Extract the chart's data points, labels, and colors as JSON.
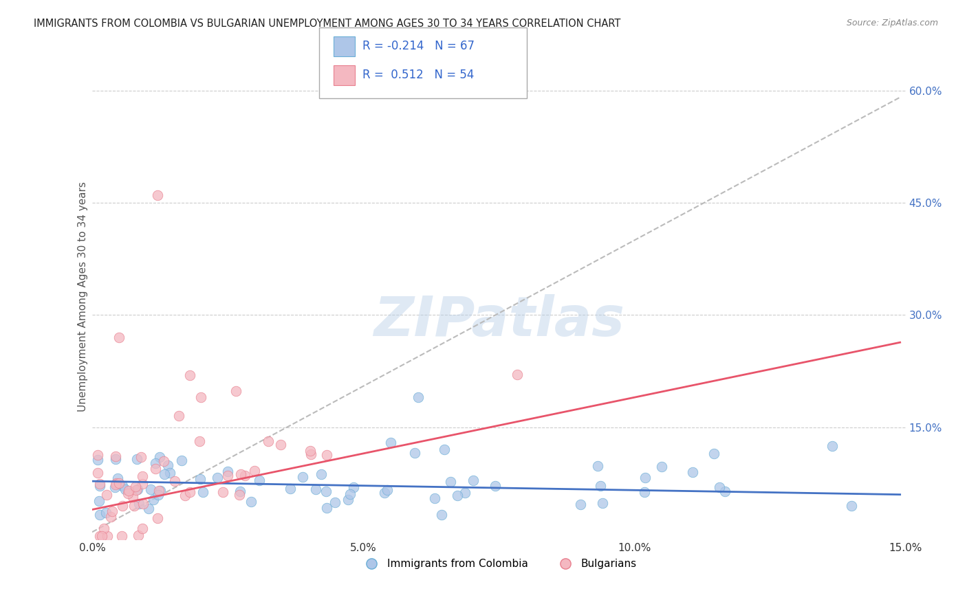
{
  "title": "IMMIGRANTS FROM COLOMBIA VS BULGARIAN UNEMPLOYMENT AMONG AGES 30 TO 34 YEARS CORRELATION CHART",
  "source": "Source: ZipAtlas.com",
  "ylabel": "Unemployment Among Ages 30 to 34 years",
  "xlim": [
    0.0,
    0.15
  ],
  "ylim": [
    0.0,
    0.65
  ],
  "xticklabels": [
    "0.0%",
    "5.0%",
    "10.0%",
    "15.0%"
  ],
  "xtick_vals": [
    0.0,
    0.05,
    0.1,
    0.15
  ],
  "ytick_vals": [
    0.15,
    0.3,
    0.45,
    0.6
  ],
  "yticklabels": [
    "15.0%",
    "30.0%",
    "45.0%",
    "60.0%"
  ],
  "grid_color": "#cccccc",
  "background_color": "#ffffff",
  "series1_color": "#aec6e8",
  "series1_edge": "#6aaed6",
  "series2_color": "#f4b8c1",
  "series2_edge": "#e87f8e",
  "trend1_color": "#4472c4",
  "trend2_color": "#e8546a",
  "diag_color": "#bbbbbb",
  "watermark": "ZIPatlas",
  "legend_label1": "R = -0.214   N = 67",
  "legend_label2": "R =  0.512   N = 54",
  "bottom_legend1": "Immigrants from Colombia",
  "bottom_legend2": "Bulgarians"
}
